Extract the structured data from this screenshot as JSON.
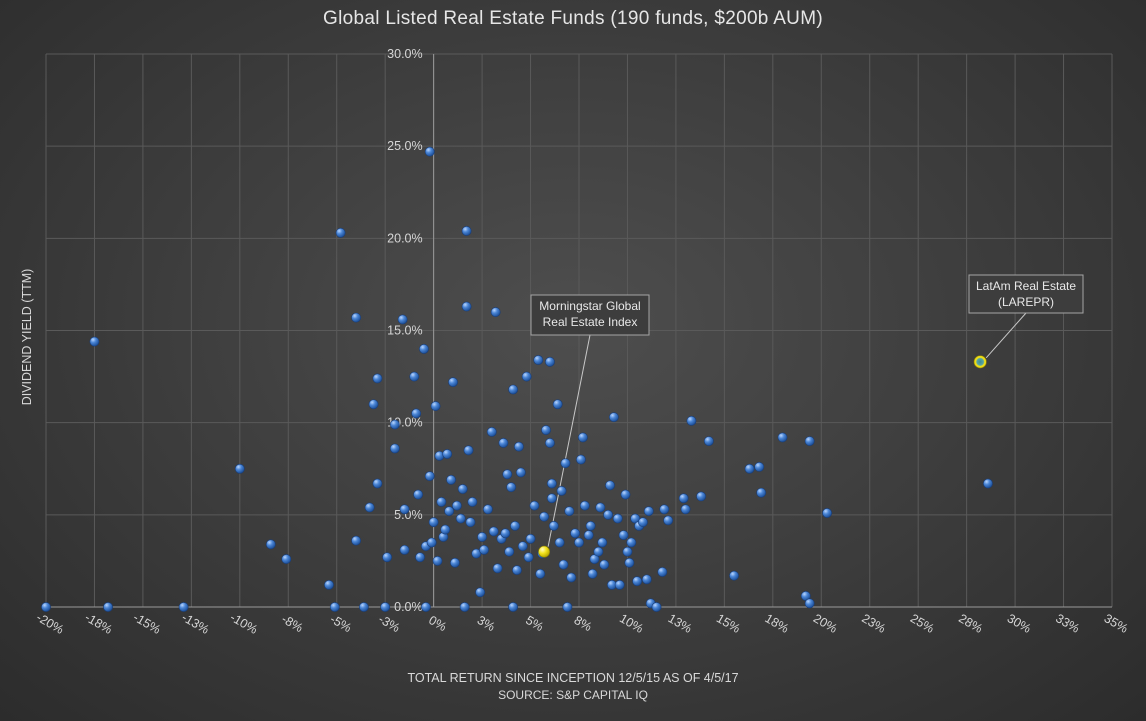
{
  "title": "Global Listed Real Estate Funds (190 funds, $200b AUM)",
  "chart_data": {
    "type": "scatter",
    "title": "Global Listed Real Estate Funds (190 funds, $200b AUM)",
    "xlabel": "TOTAL RETURN SINCE INCEPTION 12/5/15 AS OF 4/5/17",
    "source": "SOURCE: S&P CAPITAL IQ",
    "ylabel": "DIVIDEND YIELD (TTM)",
    "xlim": [
      -20,
      35
    ],
    "ylim": [
      0,
      30
    ],
    "x_tick_values": [
      -20,
      -17.5,
      -15,
      -12.5,
      -10,
      -7.5,
      -5,
      -2.5,
      0,
      2.5,
      5,
      7.5,
      10,
      12.5,
      15,
      17.5,
      20,
      22.5,
      25,
      27.5,
      30,
      32.5,
      35
    ],
    "x_tick_labels": [
      "-20%",
      "-18%",
      "-15%",
      "-13%",
      "-10%",
      "-8%",
      "-5%",
      "-3%",
      "0%",
      "3%",
      "5%",
      "8%",
      "10%",
      "13%",
      "15%",
      "18%",
      "20%",
      "23%",
      "25%",
      "28%",
      "30%",
      "33%",
      "35%"
    ],
    "y_tick_values": [
      0,
      5,
      10,
      15,
      20,
      25,
      30
    ],
    "y_tick_labels": [
      "0.0%",
      "5.0%",
      "10.0%",
      "15.0%",
      "20.0%",
      "25.0%",
      "30.0%"
    ],
    "grid": true,
    "colors": {
      "funds": "#2f6fc4",
      "highlight": "#f2e21c",
      "background": "#3f3f3f"
    },
    "series": [
      {
        "name": "Funds",
        "points": [
          [
            -17.5,
            14.4
          ],
          [
            -10.0,
            7.5
          ],
          [
            -8.4,
            3.4
          ],
          [
            -7.6,
            2.6
          ],
          [
            -5.4,
            1.2
          ],
          [
            -4.8,
            20.3
          ],
          [
            -4.0,
            15.7
          ],
          [
            -4.0,
            3.6
          ],
          [
            -3.3,
            5.4
          ],
          [
            -3.1,
            11.0
          ],
          [
            -2.9,
            12.4
          ],
          [
            -2.9,
            6.7
          ],
          [
            -2.4,
            2.7
          ],
          [
            -2.0,
            9.9
          ],
          [
            -2.0,
            8.6
          ],
          [
            -1.6,
            15.6
          ],
          [
            -1.5,
            3.1
          ],
          [
            -1.5,
            5.3
          ],
          [
            -1.0,
            12.5
          ],
          [
            -0.9,
            10.5
          ],
          [
            -0.8,
            6.1
          ],
          [
            -0.7,
            2.7
          ],
          [
            -0.5,
            14.0
          ],
          [
            -0.4,
            3.3
          ],
          [
            -0.2,
            24.7
          ],
          [
            -0.2,
            7.1
          ],
          [
            -0.1,
            3.5
          ],
          [
            0.0,
            4.6
          ],
          [
            0.1,
            10.9
          ],
          [
            0.2,
            2.5
          ],
          [
            0.3,
            8.2
          ],
          [
            0.4,
            5.7
          ],
          [
            0.5,
            3.8
          ],
          [
            0.6,
            4.2
          ],
          [
            0.7,
            8.3
          ],
          [
            0.8,
            5.2
          ],
          [
            0.9,
            6.9
          ],
          [
            1.0,
            12.2
          ],
          [
            1.1,
            2.4
          ],
          [
            1.2,
            5.5
          ],
          [
            1.4,
            4.8
          ],
          [
            1.5,
            6.4
          ],
          [
            1.7,
            20.4
          ],
          [
            1.7,
            16.3
          ],
          [
            1.8,
            8.5
          ],
          [
            1.9,
            4.6
          ],
          [
            2.0,
            5.7
          ],
          [
            2.2,
            2.9
          ],
          [
            2.4,
            0.8
          ],
          [
            2.5,
            3.8
          ],
          [
            2.6,
            3.1
          ],
          [
            2.8,
            5.3
          ],
          [
            3.0,
            9.5
          ],
          [
            3.1,
            4.1
          ],
          [
            3.2,
            16.0
          ],
          [
            3.3,
            2.1
          ],
          [
            3.5,
            3.7
          ],
          [
            3.6,
            8.9
          ],
          [
            3.7,
            4.0
          ],
          [
            3.8,
            7.2
          ],
          [
            3.9,
            3.0
          ],
          [
            4.0,
            6.5
          ],
          [
            4.1,
            11.8
          ],
          [
            4.2,
            4.4
          ],
          [
            4.3,
            2.0
          ],
          [
            4.4,
            8.7
          ],
          [
            4.5,
            7.3
          ],
          [
            4.6,
            3.3
          ],
          [
            4.8,
            12.5
          ],
          [
            4.9,
            2.7
          ],
          [
            5.0,
            3.7
          ],
          [
            5.2,
            5.5
          ],
          [
            5.4,
            13.4
          ],
          [
            5.5,
            1.8
          ],
          [
            5.6,
            2.9
          ],
          [
            5.7,
            4.9
          ],
          [
            5.8,
            9.6
          ],
          [
            6.0,
            13.3
          ],
          [
            6.0,
            8.9
          ],
          [
            6.1,
            6.7
          ],
          [
            6.1,
            5.9
          ],
          [
            6.2,
            4.4
          ],
          [
            6.4,
            11.0
          ],
          [
            6.5,
            3.5
          ],
          [
            6.6,
            6.3
          ],
          [
            6.7,
            2.3
          ],
          [
            6.8,
            7.8
          ],
          [
            7.0,
            5.2
          ],
          [
            7.1,
            1.6
          ],
          [
            7.3,
            4.0
          ],
          [
            7.5,
            3.5
          ],
          [
            7.6,
            8.0
          ],
          [
            7.7,
            9.2
          ],
          [
            7.8,
            5.5
          ],
          [
            8.0,
            3.9
          ],
          [
            8.1,
            4.4
          ],
          [
            8.2,
            1.8
          ],
          [
            8.3,
            2.6
          ],
          [
            8.5,
            3.0
          ],
          [
            8.6,
            5.4
          ],
          [
            8.7,
            3.5
          ],
          [
            8.8,
            2.3
          ],
          [
            9.0,
            5.0
          ],
          [
            9.1,
            6.6
          ],
          [
            9.2,
            1.2
          ],
          [
            9.3,
            10.3
          ],
          [
            9.5,
            4.8
          ],
          [
            9.6,
            1.2
          ],
          [
            9.8,
            3.9
          ],
          [
            9.9,
            6.1
          ],
          [
            10.0,
            3.0
          ],
          [
            10.1,
            2.4
          ],
          [
            10.2,
            3.5
          ],
          [
            10.4,
            4.8
          ],
          [
            10.5,
            1.4
          ],
          [
            10.6,
            4.4
          ],
          [
            10.8,
            4.6
          ],
          [
            11.0,
            1.5
          ],
          [
            11.1,
            5.2
          ],
          [
            11.2,
            0.2
          ],
          [
            11.8,
            1.9
          ],
          [
            11.9,
            5.3
          ],
          [
            12.1,
            4.7
          ],
          [
            12.9,
            5.9
          ],
          [
            13.0,
            5.3
          ],
          [
            13.3,
            10.1
          ],
          [
            13.8,
            6.0
          ],
          [
            14.2,
            9.0
          ],
          [
            15.5,
            1.7
          ],
          [
            16.3,
            7.5
          ],
          [
            16.8,
            7.6
          ],
          [
            16.9,
            6.2
          ],
          [
            18.0,
            9.2
          ],
          [
            19.2,
            0.6
          ],
          [
            19.4,
            9.0
          ],
          [
            19.4,
            0.2
          ],
          [
            20.3,
            5.1
          ],
          [
            28.6,
            6.7
          ],
          [
            -20.0,
            0.0
          ],
          [
            -16.8,
            0.0
          ],
          [
            -12.9,
            0.0
          ],
          [
            -5.1,
            0.0
          ],
          [
            -3.6,
            0.0
          ],
          [
            -2.5,
            0.0
          ],
          [
            -0.4,
            0.0
          ],
          [
            1.6,
            0.0
          ],
          [
            4.1,
            0.0
          ],
          [
            6.9,
            0.0
          ],
          [
            11.5,
            0.0
          ]
        ]
      },
      {
        "name": "Morningstar Global Real Estate Index",
        "points": [
          [
            5.7,
            3.0
          ]
        ]
      },
      {
        "name": "LatAm Real Estate (LAREPR)",
        "points": [
          [
            28.2,
            13.3
          ]
        ]
      }
    ],
    "annotations": [
      {
        "lines": [
          "Morningstar Global",
          "Real Estate Index"
        ],
        "points_to": [
          5.7,
          3.0
        ]
      },
      {
        "lines": [
          "LatAm Real Estate",
          "(LAREPR)"
        ],
        "points_to": [
          28.2,
          13.3
        ]
      }
    ]
  }
}
